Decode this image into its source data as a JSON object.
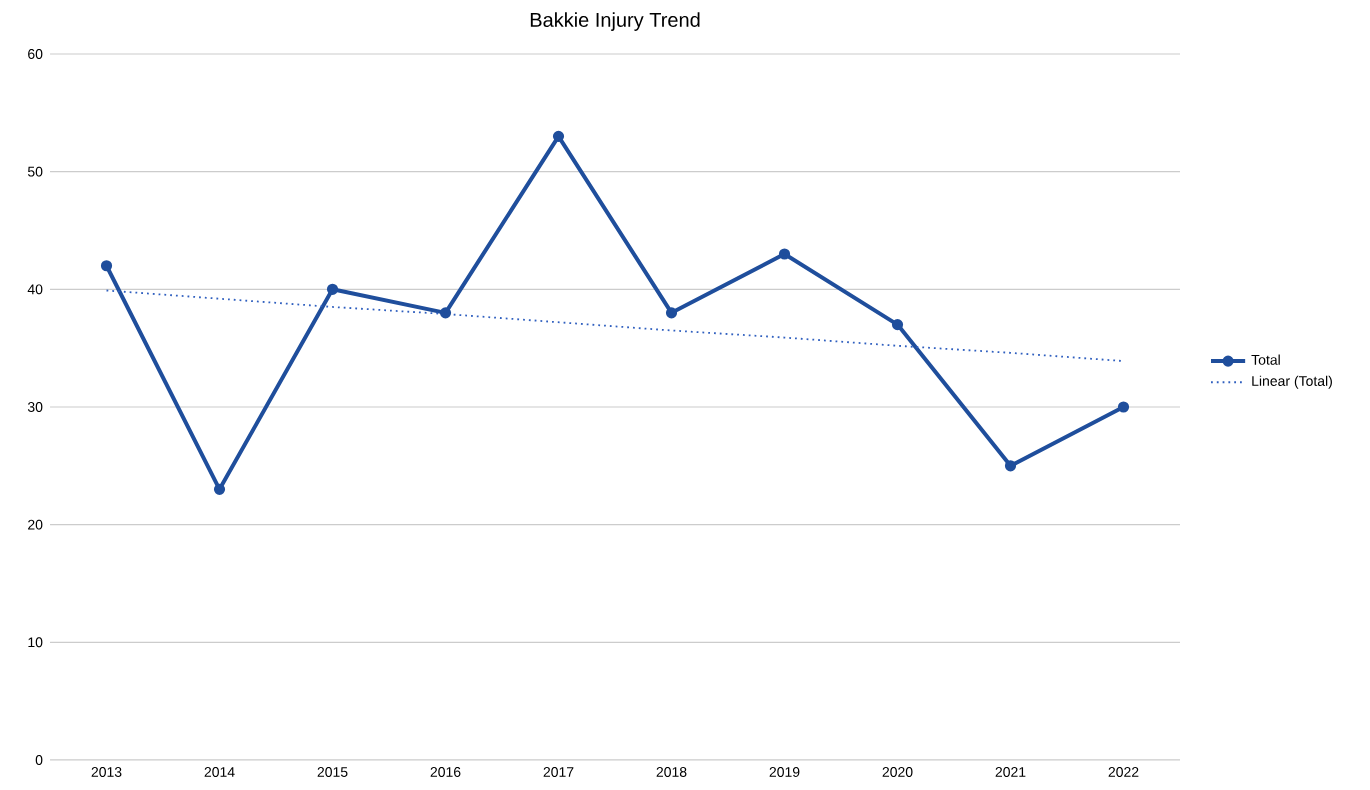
{
  "chart_data": {
    "type": "line",
    "title": "Bakkie Injury Trend",
    "categories": [
      "2013",
      "2014",
      "2015",
      "2016",
      "2017",
      "2018",
      "2019",
      "2020",
      "2021",
      "2022"
    ],
    "series": [
      {
        "name": "Total",
        "color": "#1f4e9c",
        "values": [
          42,
          23,
          40,
          38,
          53,
          38,
          43,
          37,
          25,
          30
        ],
        "marker": "circle",
        "line_style": "solid"
      },
      {
        "name": "Linear (Total)",
        "color": "#2f5fbf",
        "values": [
          39.9,
          39.2,
          38.5,
          37.9,
          37.2,
          36.5,
          35.9,
          35.2,
          34.6,
          33.9
        ],
        "marker": "none",
        "line_style": "dotted"
      }
    ],
    "ylim": [
      0,
      60
    ],
    "yticks": [
      0,
      10,
      20,
      30,
      40,
      50,
      60
    ],
    "grid": "y",
    "legend": "right"
  }
}
